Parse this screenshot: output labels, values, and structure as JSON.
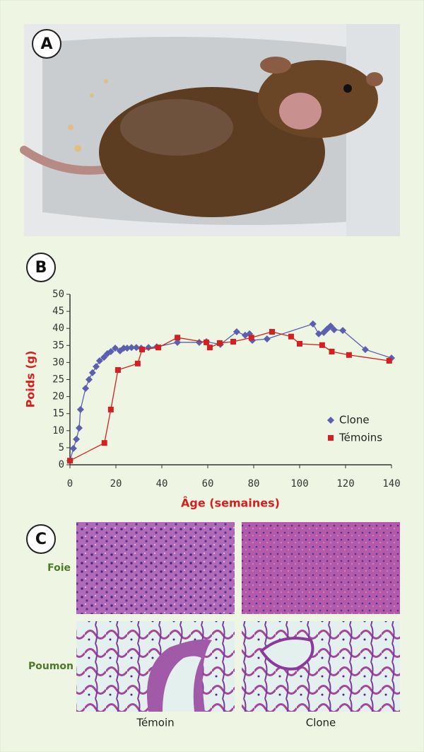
{
  "panel_labels": [
    "A",
    "B",
    "C"
  ],
  "chart_data": {
    "type": "line",
    "y_label": "Poids (g)",
    "x_label": "Âge (semaines)",
    "xlim": [
      0,
      140
    ],
    "xticks": [
      0,
      20,
      40,
      60,
      80,
      100,
      120,
      140
    ],
    "ylim": [
      0,
      50
    ],
    "yticks": [
      0,
      5,
      10,
      15,
      20,
      25,
      30,
      35,
      40,
      45,
      50
    ],
    "legend": "lower right",
    "series": [
      {
        "name": "Clone",
        "color": "#5a5fb0",
        "marker": "diamond",
        "x": [
          0,
          1.5,
          2.8,
          4,
          4.6,
          6.8,
          8.3,
          9.8,
          11.4,
          12.9,
          14.8,
          16.3,
          17.8,
          19.7,
          21.8,
          23.4,
          24.9,
          26.8,
          28.9,
          31,
          34.2,
          37.8,
          46.8,
          56.3,
          59.4,
          65.5,
          72.6,
          76.3,
          78.2,
          79.4,
          85.8,
          105.8,
          108.3,
          110.5,
          112,
          113.5,
          115,
          118.8,
          128.6,
          140
        ],
        "values": [
          1.2,
          4.8,
          7.5,
          10.8,
          16.2,
          22.4,
          25,
          27,
          28.8,
          30.5,
          31.5,
          32.6,
          33.2,
          34.2,
          33.4,
          34.2,
          34.2,
          34.4,
          34.4,
          34.2,
          34.4,
          34.6,
          35.9,
          35.9,
          36.1,
          35.3,
          39,
          38,
          38.4,
          36.5,
          36.9,
          41.3,
          38.4,
          38.8,
          39.8,
          40.7,
          39.6,
          39.4,
          33.8,
          31.3
        ]
      },
      {
        "name": "Témoins",
        "color": "#d42020",
        "marker": "square",
        "x": [
          0,
          15,
          17.8,
          20.9,
          29.5,
          31.4,
          38.5,
          46.8,
          59.4,
          60.9,
          65.2,
          71.1,
          79,
          88,
          96.3,
          100,
          109.8,
          114,
          121.5,
          139
        ],
        "values": [
          1.2,
          6.4,
          16.2,
          27.8,
          29.7,
          33.8,
          34.4,
          37.3,
          35.9,
          34.4,
          35.7,
          36.1,
          37.3,
          39,
          37.6,
          35.5,
          35.1,
          33.2,
          32.2,
          30.5
        ]
      }
    ]
  },
  "histology": {
    "rows": [
      "Foie",
      "Poumon"
    ],
    "columns": [
      "Témoin",
      "Clone"
    ]
  }
}
